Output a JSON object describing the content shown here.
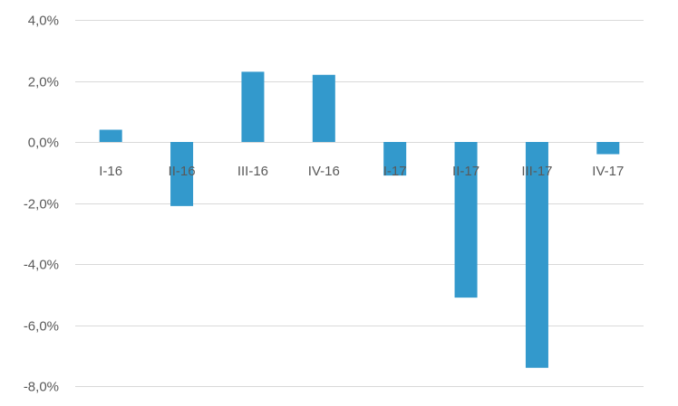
{
  "chart_data": {
    "type": "bar",
    "categories": [
      "I-16",
      "II-16",
      "III-16",
      "IV-16",
      "I-17",
      "II-17",
      "III-17",
      "IV-17"
    ],
    "values": [
      0.4,
      -2.1,
      2.3,
      2.2,
      -1.1,
      -5.1,
      -7.4,
      -0.4
    ],
    "ylim": [
      -8.0,
      4.0
    ],
    "yticks": [
      4.0,
      2.0,
      0.0,
      -2.0,
      -4.0,
      -6.0,
      -8.0
    ],
    "ytick_labels": [
      "4,0%",
      "2,0%",
      "0,0%",
      "-2,0%",
      "-4,0%",
      "-6,0%",
      "-8,0%"
    ],
    "grid": true,
    "bar_color": "#3399cc",
    "title": "",
    "xlabel": "",
    "ylabel": ""
  }
}
